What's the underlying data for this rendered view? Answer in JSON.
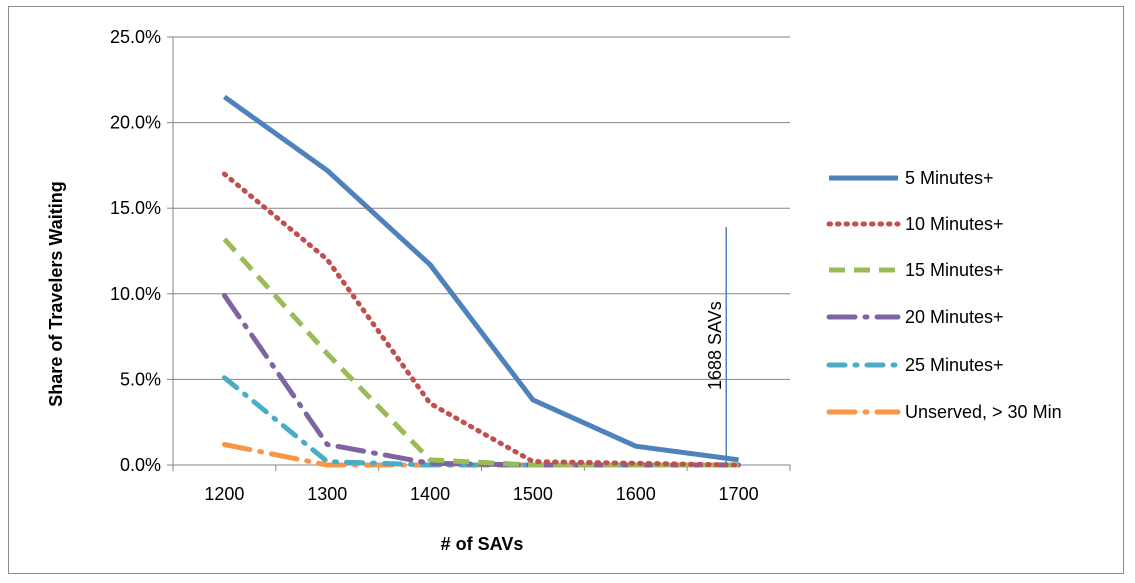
{
  "chart_data": {
    "type": "line",
    "xlabel": "# of SAVs",
    "ylabel": "Share of Travelers Waiting",
    "ylim": [
      0,
      0.25
    ],
    "xlim": [
      1150,
      1750
    ],
    "x": [
      1200,
      1300,
      1400,
      1500,
      1600,
      1700
    ],
    "xticks": [
      1200,
      1300,
      1400,
      1500,
      1600,
      1700
    ],
    "xtick_labels": [
      "1200",
      "1300",
      "1400",
      "1500",
      "1600",
      "1700"
    ],
    "yticks": [
      0,
      0.05,
      0.1,
      0.15,
      0.2,
      0.25
    ],
    "ytick_labels": [
      "0.0%",
      "5.0%",
      "10.0%",
      "15.0%",
      "20.0%",
      "25.0%"
    ],
    "grid": "horizontal",
    "legend_position": "right",
    "series": [
      {
        "name": "5 Minutes+",
        "values": [
          0.215,
          0.172,
          0.117,
          0.038,
          0.011,
          0.003
        ],
        "color": "#4F81BD",
        "style": "solid"
      },
      {
        "name": "10 Minutes+",
        "values": [
          0.17,
          0.12,
          0.036,
          0.002,
          0.001,
          0.0
        ],
        "color": "#C0504D",
        "style": "dotted"
      },
      {
        "name": "15 Minutes+",
        "values": [
          0.132,
          0.065,
          0.003,
          0.0,
          0.0,
          0.0
        ],
        "color": "#9BBB59",
        "style": "dashed"
      },
      {
        "name": "20 Minutes+",
        "values": [
          0.099,
          0.012,
          0.001,
          0.0,
          0.0,
          0.0
        ],
        "color": "#8064A2",
        "style": "long-dash-dot"
      },
      {
        "name": "25 Minutes+",
        "values": [
          0.051,
          0.002,
          0.0,
          0.0,
          0.0,
          0.0
        ],
        "color": "#4BACC6",
        "style": "dash-dot"
      },
      {
        "name": "Unserved, > 30 Min",
        "values": [
          0.012,
          0.0,
          0.0,
          0.0,
          0.0,
          0.0
        ],
        "color": "#F79646",
        "style": "long-dash-dot"
      }
    ],
    "annotations": [
      {
        "type": "vline",
        "x": 1688,
        "label": "1688 SAVs",
        "color": "#4F81BD"
      }
    ]
  }
}
